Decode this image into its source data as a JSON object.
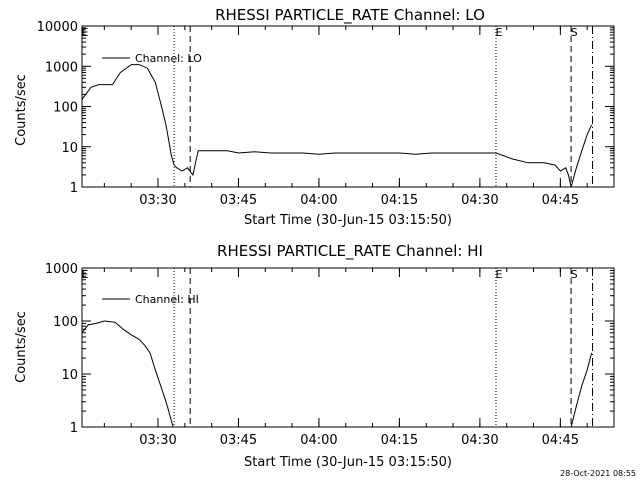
{
  "figure": {
    "footer_stamp": "28-Oct-2021 08:55"
  },
  "chart_data": [
    {
      "type": "line",
      "title": "RHESSI PARTICLE_RATE Channel: LO",
      "xlabel": "Start Time (30-Jun-15 03:15:50)",
      "ylabel": "Counts/sec",
      "y_scale": "log",
      "ylim": [
        1,
        10000
      ],
      "xlim": [
        "03:15:50",
        "04:55:00"
      ],
      "x_tick_labels": [
        "03:30",
        "03:45",
        "04:00",
        "04:15",
        "04:30",
        "04:45"
      ],
      "y_tick_labels": [
        "1",
        "10",
        "100",
        "1000",
        "10000"
      ],
      "legend": {
        "position": "top-left",
        "entries": [
          "Channel: LO"
        ]
      },
      "markers": [
        {
          "label": "E",
          "time": "03:15:50",
          "style": "none"
        },
        {
          "label": "",
          "time": "03:33:00",
          "style": "dotted"
        },
        {
          "label": "",
          "time": "03:36:00",
          "style": "dashed"
        },
        {
          "label": "E",
          "time": "04:33:00",
          "style": "dotted"
        },
        {
          "label": "S",
          "time": "04:47:00",
          "style": "dashed"
        },
        {
          "label": "",
          "time": "04:51:00",
          "style": "dashdot"
        }
      ],
      "series": [
        {
          "name": "Channel: LO",
          "x": [
            "03:15:50",
            "03:17:30",
            "03:19:00",
            "03:21:30",
            "03:23:00",
            "03:25:00",
            "03:26:30",
            "03:28:00",
            "03:29:30",
            "03:30:30",
            "03:31:30",
            "03:32:30",
            "03:33:00",
            "03:33:30",
            "03:34:30",
            "03:35:30",
            "03:36:30",
            "03:37:30",
            "03:39:00",
            "03:41:00",
            "03:43:00",
            "03:45:00",
            "03:48:00",
            "03:51:00",
            "03:54:00",
            "03:57:00",
            "04:00:00",
            "04:03:00",
            "04:06:00",
            "04:09:00",
            "04:12:00",
            "04:15:00",
            "04:18:00",
            "04:21:00",
            "04:24:00",
            "04:27:00",
            "04:30:00",
            "04:33:00",
            "04:36:00",
            "04:39:00",
            "04:42:00",
            "04:44:00",
            "04:45:00",
            "04:46:00",
            "04:46:30",
            "04:47:00",
            "04:48:00",
            "04:49:00",
            "04:50:00",
            "04:50:50"
          ],
          "y": [
            150,
            300,
            350,
            350,
            700,
            1100,
            1100,
            900,
            400,
            120,
            35,
            6,
            3.5,
            3,
            2.5,
            3,
            2,
            8,
            8,
            8,
            8,
            7,
            7.5,
            7,
            7,
            7,
            6.5,
            7,
            7,
            7,
            7,
            7,
            6.5,
            7,
            7,
            7,
            7,
            7,
            5,
            4,
            4,
            3.5,
            2.5,
            3,
            2,
            1,
            3,
            8,
            20,
            35
          ]
        }
      ]
    },
    {
      "type": "line",
      "title": "RHESSI PARTICLE_RATE Channel: HI",
      "xlabel": "Start Time (30-Jun-15 03:15:50)",
      "ylabel": "Counts/sec",
      "y_scale": "log",
      "ylim": [
        1,
        1000
      ],
      "xlim": [
        "03:15:50",
        "04:55:00"
      ],
      "x_tick_labels": [
        "03:30",
        "03:45",
        "04:00",
        "04:15",
        "04:30",
        "04:45"
      ],
      "y_tick_labels": [
        "1",
        "10",
        "100",
        "1000"
      ],
      "legend": {
        "position": "top-left",
        "entries": [
          "Channel: HI"
        ]
      },
      "markers": [
        {
          "label": "E",
          "time": "03:15:50",
          "style": "none"
        },
        {
          "label": "",
          "time": "03:33:00",
          "style": "dotted"
        },
        {
          "label": "",
          "time": "03:36:00",
          "style": "dashed"
        },
        {
          "label": "E",
          "time": "04:33:00",
          "style": "dotted"
        },
        {
          "label": "S",
          "time": "04:47:00",
          "style": "dashed"
        },
        {
          "label": "",
          "time": "04:51:00",
          "style": "dashdot"
        }
      ],
      "series": [
        {
          "name": "Channel: HI",
          "x": [
            "03:15:50",
            "03:17:00",
            "03:18:30",
            "03:20:00",
            "03:22:00",
            "03:23:30",
            "03:25:00",
            "03:26:30",
            "03:27:30",
            "03:28:30",
            "03:29:30",
            "03:30:30",
            "03:31:30",
            "03:32:00",
            "03:32:30",
            "03:32:50",
            "04:47:00",
            "04:48:00",
            "04:49:00",
            "04:50:00",
            "04:50:50"
          ],
          "y": [
            60,
            85,
            90,
            100,
            95,
            70,
            55,
            45,
            35,
            25,
            12,
            6,
            3,
            2,
            1.3,
            1,
            1,
            2.5,
            6,
            12,
            25
          ]
        }
      ]
    }
  ]
}
